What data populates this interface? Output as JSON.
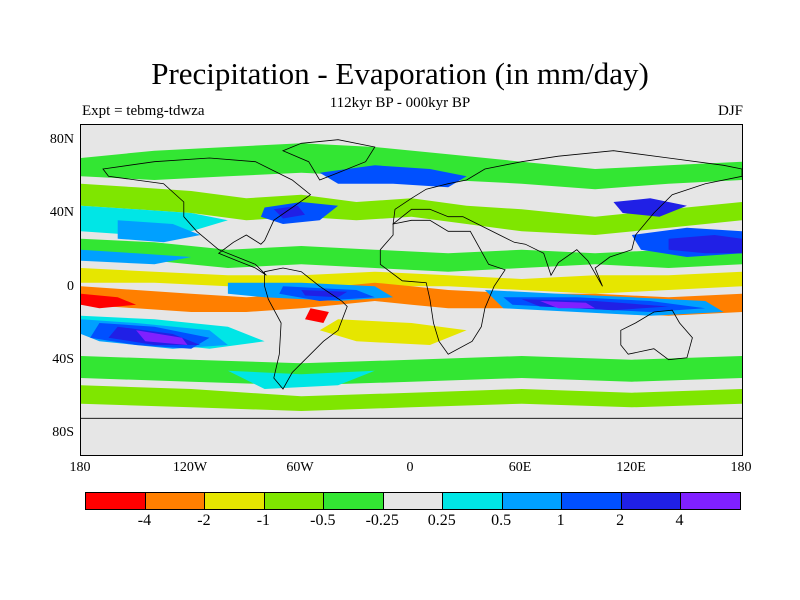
{
  "title": "Precipitation - Evaporation (in mm/day)",
  "subtitle": "112kyr BP - 000kyr BP",
  "left_label": "Expt = tebmg-tdwza",
  "right_label": "DJF",
  "lat_ticks": [
    "80N",
    "40N",
    "0",
    "40S",
    "80S"
  ],
  "lon_ticks": [
    "180",
    "120W",
    "60W",
    "0",
    "60E",
    "120E",
    "180"
  ],
  "colorbar": {
    "colors": [
      "#ff0000",
      "#ff7f00",
      "#e6e600",
      "#7fe600",
      "#33e633",
      "#e6e6e6",
      "#00e6e6",
      "#00a0ff",
      "#0050ff",
      "#2020e6",
      "#8020ff"
    ],
    "labels": [
      "-4",
      "-2",
      "-1",
      "-0.5",
      "-0.25",
      "0.25",
      "0.5",
      "1",
      "2",
      "4"
    ]
  },
  "field": {
    "lon_range": [
      -180,
      180
    ],
    "lat_range": [
      -90,
      90
    ],
    "background": "#e6e6e6"
  }
}
